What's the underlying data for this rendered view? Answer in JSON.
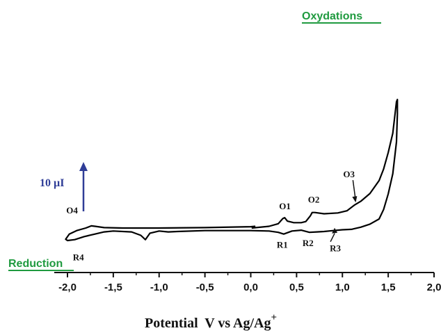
{
  "chart_data": {
    "type": "line",
    "xlabel": "Potential  V vs Ag/Ag",
    "xlabel_superscript": "+",
    "ylabel": "",
    "xlim": [
      -2.1,
      2.0
    ],
    "x_ticks": [
      "-2,0",
      "-1,5",
      "-1,0",
      "-0,5",
      "0,0",
      "0,5",
      "1,0",
      "1,5",
      "2,0"
    ],
    "x_tick_values": [
      -2.0,
      -1.5,
      -1.0,
      -0.5,
      0.0,
      0.5,
      1.0,
      1.5,
      2.0
    ],
    "y_units": "µI",
    "ylim": [
      -4.2,
      31.0
    ],
    "grid": false,
    "scale_bar": {
      "label": "10 µI",
      "value": 10,
      "color": "#2f3d97"
    },
    "region_labels": [
      {
        "text": "Oxydations",
        "color": "#1f9a3f"
      },
      {
        "text": "Reduction",
        "color": "#1f9a3f"
      }
    ],
    "peaks": [
      {
        "label": "O1",
        "x": 0.37,
        "y": 2.4
      },
      {
        "label": "O2",
        "x": 0.67,
        "y": 3.6
      },
      {
        "label": "O3",
        "x": 1.13,
        "y": 5.3
      },
      {
        "label": "O4",
        "x": -1.74,
        "y": 0.5
      },
      {
        "label": "R1",
        "x": 0.36,
        "y": -1.4
      },
      {
        "label": "R2",
        "x": 0.64,
        "y": -1.0
      },
      {
        "label": "R3",
        "x": 0.9,
        "y": -0.6
      },
      {
        "label": "R4",
        "x": -1.82,
        "y": -2.0
      }
    ],
    "series": [
      {
        "color": "#000000",
        "points": [
          [
            0.01,
            0.0
          ],
          [
            0.2,
            0.4
          ],
          [
            0.3,
            1.0
          ],
          [
            0.35,
            2.2
          ],
          [
            0.37,
            2.4
          ],
          [
            0.4,
            1.6
          ],
          [
            0.47,
            1.25
          ],
          [
            0.55,
            1.25
          ],
          [
            0.6,
            1.5
          ],
          [
            0.65,
            2.8
          ],
          [
            0.67,
            3.6
          ],
          [
            0.7,
            3.6
          ],
          [
            0.8,
            3.3
          ],
          [
            0.95,
            3.5
          ],
          [
            1.05,
            4.0
          ],
          [
            1.13,
            5.3
          ],
          [
            1.2,
            6.2
          ],
          [
            1.3,
            8.0
          ],
          [
            1.4,
            11.0
          ],
          [
            1.45,
            13.7
          ],
          [
            1.5,
            17.5
          ],
          [
            1.55,
            22.0
          ],
          [
            1.59,
            29.3
          ],
          [
            1.6,
            29.8
          ],
          [
            1.6,
            26.5
          ],
          [
            1.59,
            20.0
          ],
          [
            1.55,
            12.6
          ],
          [
            1.5,
            7.9
          ],
          [
            1.45,
            4.3
          ],
          [
            1.4,
            2.1
          ],
          [
            1.3,
            0.9
          ],
          [
            1.2,
            0.2
          ],
          [
            1.1,
            -0.3
          ],
          [
            1.0,
            -0.4
          ],
          [
            0.9,
            -0.6
          ],
          [
            0.8,
            -0.8
          ],
          [
            0.72,
            -0.9
          ],
          [
            0.64,
            -1.0
          ],
          [
            0.55,
            -0.5
          ],
          [
            0.45,
            -0.7
          ],
          [
            0.36,
            -1.4
          ],
          [
            0.3,
            -1.0
          ],
          [
            0.2,
            -0.7
          ],
          [
            0.0,
            -0.6
          ],
          [
            -0.5,
            -0.6
          ],
          [
            -0.8,
            -0.8
          ],
          [
            -0.9,
            -0.9
          ],
          [
            -1.0,
            -0.7
          ],
          [
            -1.1,
            -1.2
          ],
          [
            -1.15,
            -2.7
          ],
          [
            -1.2,
            -1.7
          ],
          [
            -1.3,
            -0.9
          ],
          [
            -1.5,
            -0.7
          ],
          [
            -1.6,
            -0.9
          ],
          [
            -1.7,
            -1.4
          ],
          [
            -1.82,
            -2.0
          ],
          [
            -1.92,
            -2.7
          ],
          [
            -2.0,
            -2.9
          ],
          [
            -2.02,
            -2.6
          ],
          [
            -1.98,
            -1.4
          ],
          [
            -1.9,
            -0.6
          ],
          [
            -1.8,
            0.0
          ],
          [
            -1.74,
            0.5
          ],
          [
            -1.7,
            0.4
          ],
          [
            -1.6,
            0.1
          ],
          [
            -1.4,
            0.0
          ],
          [
            -1.0,
            0.0
          ],
          [
            -0.5,
            0.1
          ],
          [
            0.0,
            0.3
          ],
          [
            0.05,
            0.4
          ]
        ]
      }
    ]
  }
}
